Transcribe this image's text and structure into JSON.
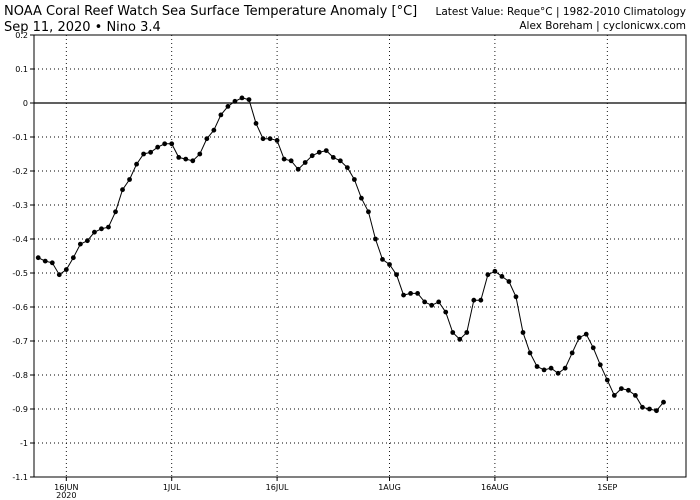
{
  "header": {
    "title_left": "NOAA Coral Reef Watch Sea Surface Temperature Anomaly [°C]",
    "subtitle_left": "Sep 11, 2020  •  Nino 3.4",
    "title_right": "Latest Value: Reque°C | 1982-2010 Climatology",
    "subtitle_right": "Alex Boreham | cyclonicwx.com"
  },
  "chart_data": {
    "type": "line",
    "title": "NOAA Coral Reef Watch Sea Surface Temperature Anomaly [°C]",
    "xlabel": "",
    "ylabel": "",
    "x_start_date": "2020-06-12",
    "xlim_days": [
      -0.6,
      92.2
    ],
    "ylim": [
      -1.1,
      0.2
    ],
    "y_ticks": [
      0.2,
      0.1,
      0,
      -0.1,
      -0.2,
      -0.3,
      -0.4,
      -0.5,
      -0.6,
      -0.7,
      -0.8,
      -0.9,
      -1,
      -1.1
    ],
    "x_ticks": [
      {
        "day": 4,
        "label": "16JUN",
        "sublabel": "2020"
      },
      {
        "day": 19,
        "label": "1JUL",
        "sublabel": ""
      },
      {
        "day": 34,
        "label": "16JUL",
        "sublabel": ""
      },
      {
        "day": 50,
        "label": "1AUG",
        "sublabel": ""
      },
      {
        "day": 65,
        "label": "16AUG",
        "sublabel": ""
      },
      {
        "day": 81,
        "label": "1SEP",
        "sublabel": ""
      }
    ],
    "grid": true,
    "zero_line": true,
    "series": [
      {
        "name": "Nino 3.4",
        "color": "#000000",
        "values": [
          -0.455,
          -0.465,
          -0.47,
          -0.505,
          -0.49,
          -0.455,
          -0.415,
          -0.405,
          -0.38,
          -0.37,
          -0.365,
          -0.32,
          -0.255,
          -0.225,
          -0.18,
          -0.15,
          -0.145,
          -0.13,
          -0.12,
          -0.12,
          -0.16,
          -0.165,
          -0.17,
          -0.15,
          -0.105,
          -0.08,
          -0.035,
          -0.01,
          0.005,
          0.015,
          0.01,
          -0.06,
          -0.105,
          -0.105,
          -0.11,
          -0.165,
          -0.17,
          -0.195,
          -0.175,
          -0.155,
          -0.145,
          -0.14,
          -0.16,
          -0.17,
          -0.19,
          -0.225,
          -0.28,
          -0.32,
          -0.4,
          -0.46,
          -0.475,
          -0.505,
          -0.565,
          -0.56,
          -0.56,
          -0.585,
          -0.595,
          -0.585,
          -0.615,
          -0.675,
          -0.695,
          -0.675,
          -0.58,
          -0.58,
          -0.505,
          -0.495,
          -0.51,
          -0.525,
          -0.57,
          -0.675,
          -0.735,
          -0.775,
          -0.785,
          -0.78,
          -0.795,
          -0.78,
          -0.735,
          -0.69,
          -0.68,
          -0.72,
          -0.77,
          -0.815,
          -0.86,
          -0.84,
          -0.845,
          -0.86,
          -0.895,
          -0.9,
          -0.905,
          -0.88
        ]
      }
    ]
  }
}
